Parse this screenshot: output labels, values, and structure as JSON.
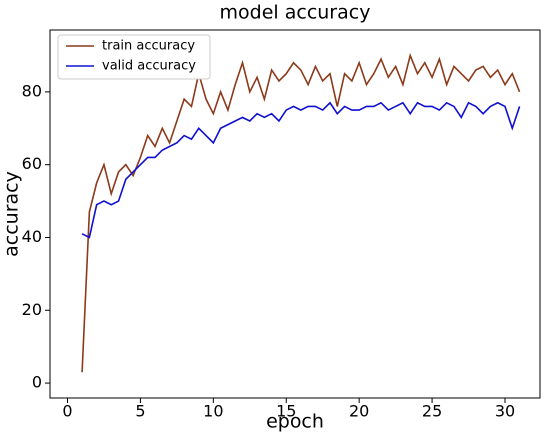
{
  "chart_data": {
    "type": "line",
    "title": "model accuracy",
    "x_label": "epoch",
    "y_label": "accuracy",
    "x": [
      1,
      1.5,
      2,
      2.5,
      3,
      3.5,
      4,
      4.5,
      5,
      5.5,
      6,
      6.5,
      7,
      7.5,
      8,
      8.5,
      9,
      9.5,
      10,
      10.5,
      11,
      11.5,
      12,
      12.5,
      13,
      13.5,
      14,
      14.5,
      15,
      15.5,
      16,
      16.5,
      17,
      17.5,
      18,
      18.5,
      19,
      19.5,
      20,
      20.5,
      21,
      21.5,
      22,
      22.5,
      23,
      23.5,
      24,
      24.5,
      25,
      25.5,
      26,
      26.5,
      27,
      27.5,
      28,
      28.5,
      29,
      29.5,
      30,
      30.5,
      31
    ],
    "series": [
      {
        "name": "train accuracy",
        "color": "#8b3a1a",
        "values": [
          3,
          47,
          55,
          60,
          52,
          58,
          60,
          57,
          62,
          68,
          65,
          70,
          66,
          72,
          78,
          76,
          85,
          78,
          74,
          80,
          75,
          82,
          88,
          80,
          84,
          78,
          86,
          83,
          85,
          88,
          86,
          82,
          87,
          83,
          85,
          76,
          85,
          83,
          88,
          82,
          85,
          89,
          84,
          87,
          82,
          90,
          85,
          88,
          84,
          89,
          82,
          87,
          85,
          83,
          86,
          87,
          84,
          86,
          82,
          85,
          80
        ]
      },
      {
        "name": "valid accuracy",
        "color": "#1010d0",
        "values": [
          41,
          40,
          49,
          50,
          49,
          50,
          56,
          58,
          60,
          62,
          62,
          64,
          65,
          66,
          68,
          67,
          70,
          68,
          66,
          70,
          71,
          72,
          73,
          72,
          74,
          73,
          74,
          72,
          75,
          76,
          75,
          76,
          76,
          75,
          77,
          74,
          76,
          75,
          75,
          76,
          76,
          77,
          75,
          76,
          77,
          74,
          77,
          76,
          76,
          75,
          77,
          76,
          73,
          77,
          76,
          74,
          76,
          77,
          76,
          70,
          76
        ]
      }
    ],
    "xlim": [
      -1.2,
      32.4
    ],
    "ylim": [
      -4.1,
      97
    ],
    "xticks": [
      0,
      5,
      10,
      15,
      20,
      25,
      30
    ],
    "yticks": [
      0,
      20,
      40,
      60,
      80
    ],
    "legend": "upper left"
  }
}
